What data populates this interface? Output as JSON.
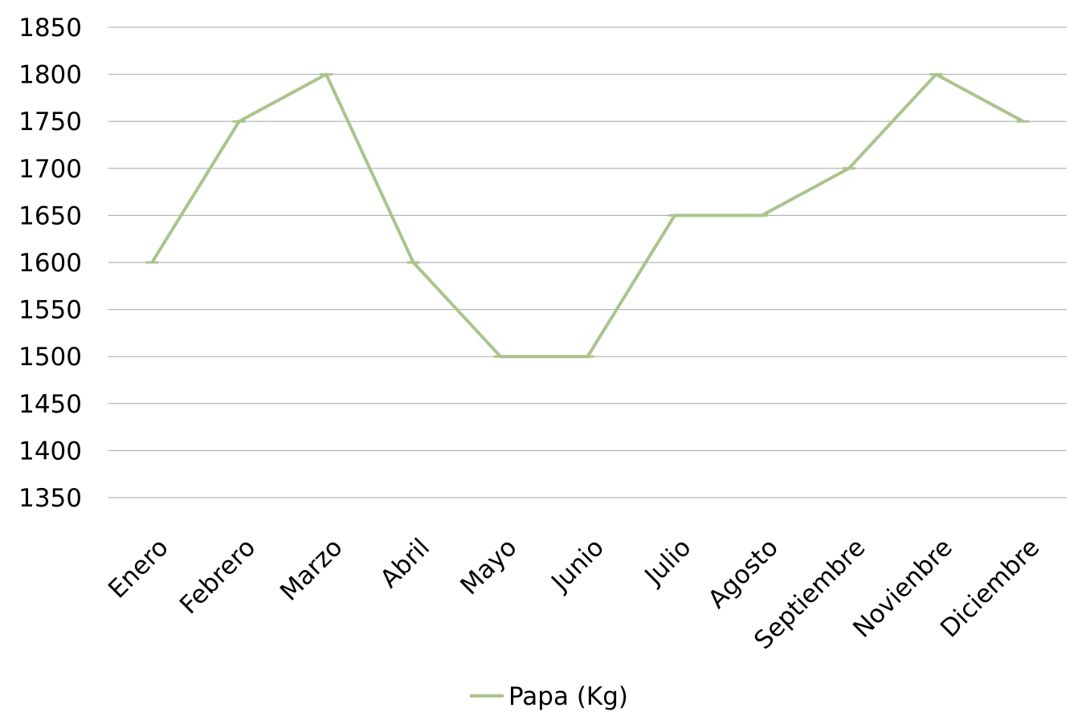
{
  "chart_data": {
    "type": "line",
    "title": "",
    "xlabel": "",
    "ylabel": "",
    "categories": [
      "Enero",
      "Febrero",
      "Marzo",
      "Abril",
      "Mayo",
      "Junio",
      "Julio",
      "Agosto",
      "Septiembre",
      "Novienbre",
      "Diciembre"
    ],
    "series": [
      {
        "name": "Papa (Kg)",
        "color": "#a9c48c",
        "values": [
          1600,
          1750,
          1800,
          1600,
          1500,
          1500,
          1650,
          1650,
          1700,
          1800,
          1750
        ]
      }
    ],
    "ylim": [
      1350,
      1850
    ],
    "yticks": [
      1350,
      1400,
      1450,
      1500,
      1550,
      1600,
      1650,
      1700,
      1750,
      1800,
      1850
    ],
    "grid": true,
    "legend_position": "bottom-center",
    "gridline_color": "#a6a6a6"
  }
}
